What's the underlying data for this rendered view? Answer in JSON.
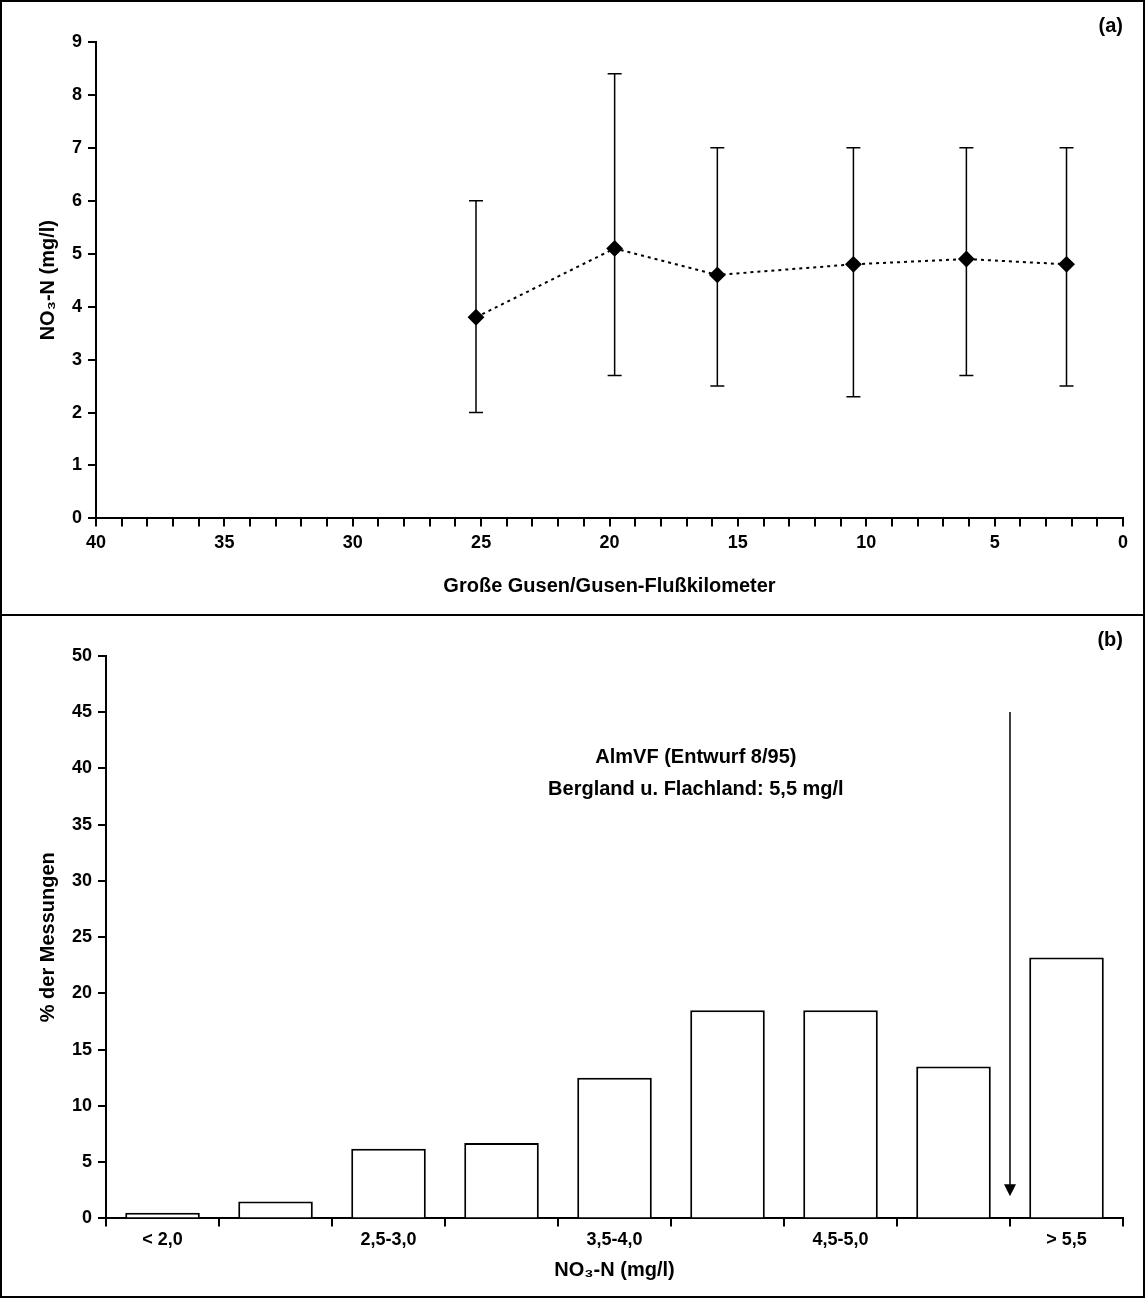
{
  "chart_data": [
    {
      "type": "line",
      "title": "(a)",
      "xlabel": "Große Gusen/Gusen-Flußkilometer",
      "ylabel": "NO₃-N (mg/l)",
      "x": [
        25.2,
        19.8,
        15.8,
        10.5,
        6.1,
        2.2
      ],
      "series": [
        {
          "color": "#000000",
          "values": [
            3.8,
            5.1,
            4.6,
            4.8,
            4.9,
            4.8
          ],
          "errors": [
            [
              2.0,
              6.0
            ],
            [
              2.7,
              8.4
            ],
            [
              2.5,
              7.0
            ],
            [
              2.3,
              7.0
            ],
            [
              2.7,
              7.0
            ],
            [
              2.5,
              7.0
            ]
          ]
        }
      ],
      "marker": "diamond",
      "line_style": "dotted",
      "xlim": [
        40,
        0
      ],
      "xticks": [
        40,
        {
          "value": 39,
          "label": null
        },
        {
          "value": 38,
          "label": null
        },
        {
          "value": 37,
          "label": null
        },
        {
          "value": 36,
          "label": null
        },
        35,
        {
          "value": 34,
          "label": null
        },
        {
          "value": 33,
          "label": null
        },
        {
          "value": 32,
          "label": null
        },
        {
          "value": 31,
          "label": null
        },
        30,
        {
          "value": 29,
          "label": null
        },
        {
          "value": 28,
          "label": null
        },
        {
          "value": 27,
          "label": null
        },
        {
          "value": 26,
          "label": null
        },
        25,
        {
          "value": 24,
          "label": null
        },
        {
          "value": 23,
          "label": null
        },
        {
          "value": 22,
          "label": null
        },
        {
          "value": 21,
          "label": null
        },
        20,
        {
          "value": 19,
          "label": null
        },
        {
          "value": 18,
          "label": null
        },
        {
          "value": 17,
          "label": null
        },
        {
          "value": 16,
          "label": null
        },
        15,
        {
          "value": 14,
          "label": null
        },
        {
          "value": 13,
          "label": null
        },
        {
          "value": 12,
          "label": null
        },
        {
          "value": 11,
          "label": null
        },
        10,
        {
          "value": 9,
          "label": null
        },
        {
          "value": 8,
          "label": null
        },
        {
          "value": 7,
          "label": null
        },
        {
          "value": 6,
          "label": null
        },
        5,
        {
          "value": 4,
          "label": null
        },
        {
          "value": 3,
          "label": null
        },
        {
          "value": 2,
          "label": null
        },
        {
          "value": 1,
          "label": null
        },
        0
      ],
      "ylim": [
        0,
        9
      ],
      "yticks": [
        0,
        1,
        2,
        3,
        4,
        5,
        6,
        7,
        8,
        9
      ]
    },
    {
      "type": "bar",
      "title": "(b)",
      "xlabel": "NO₃-N (mg/l)",
      "ylabel": "% der Messungen",
      "categories": [
        "< 2,0",
        null,
        "2,5-3,0",
        null,
        "3,5-4,0",
        null,
        "4,5-5,0",
        null,
        "> 5,5"
      ],
      "values": [
        0.5,
        1.5,
        6.2,
        6.7,
        12.5,
        18.5,
        18.5,
        13.5,
        23.2
      ],
      "color": "#ffffff",
      "ylim": [
        0,
        50
      ],
      "yticks": [
        0,
        5,
        10,
        15,
        20,
        25,
        30,
        35,
        40,
        45,
        50
      ],
      "annotations": [
        "AlmVF (Entwurf 8/95)",
        "Bergland u. Flachland: 5,5 mg/l"
      ]
    }
  ]
}
